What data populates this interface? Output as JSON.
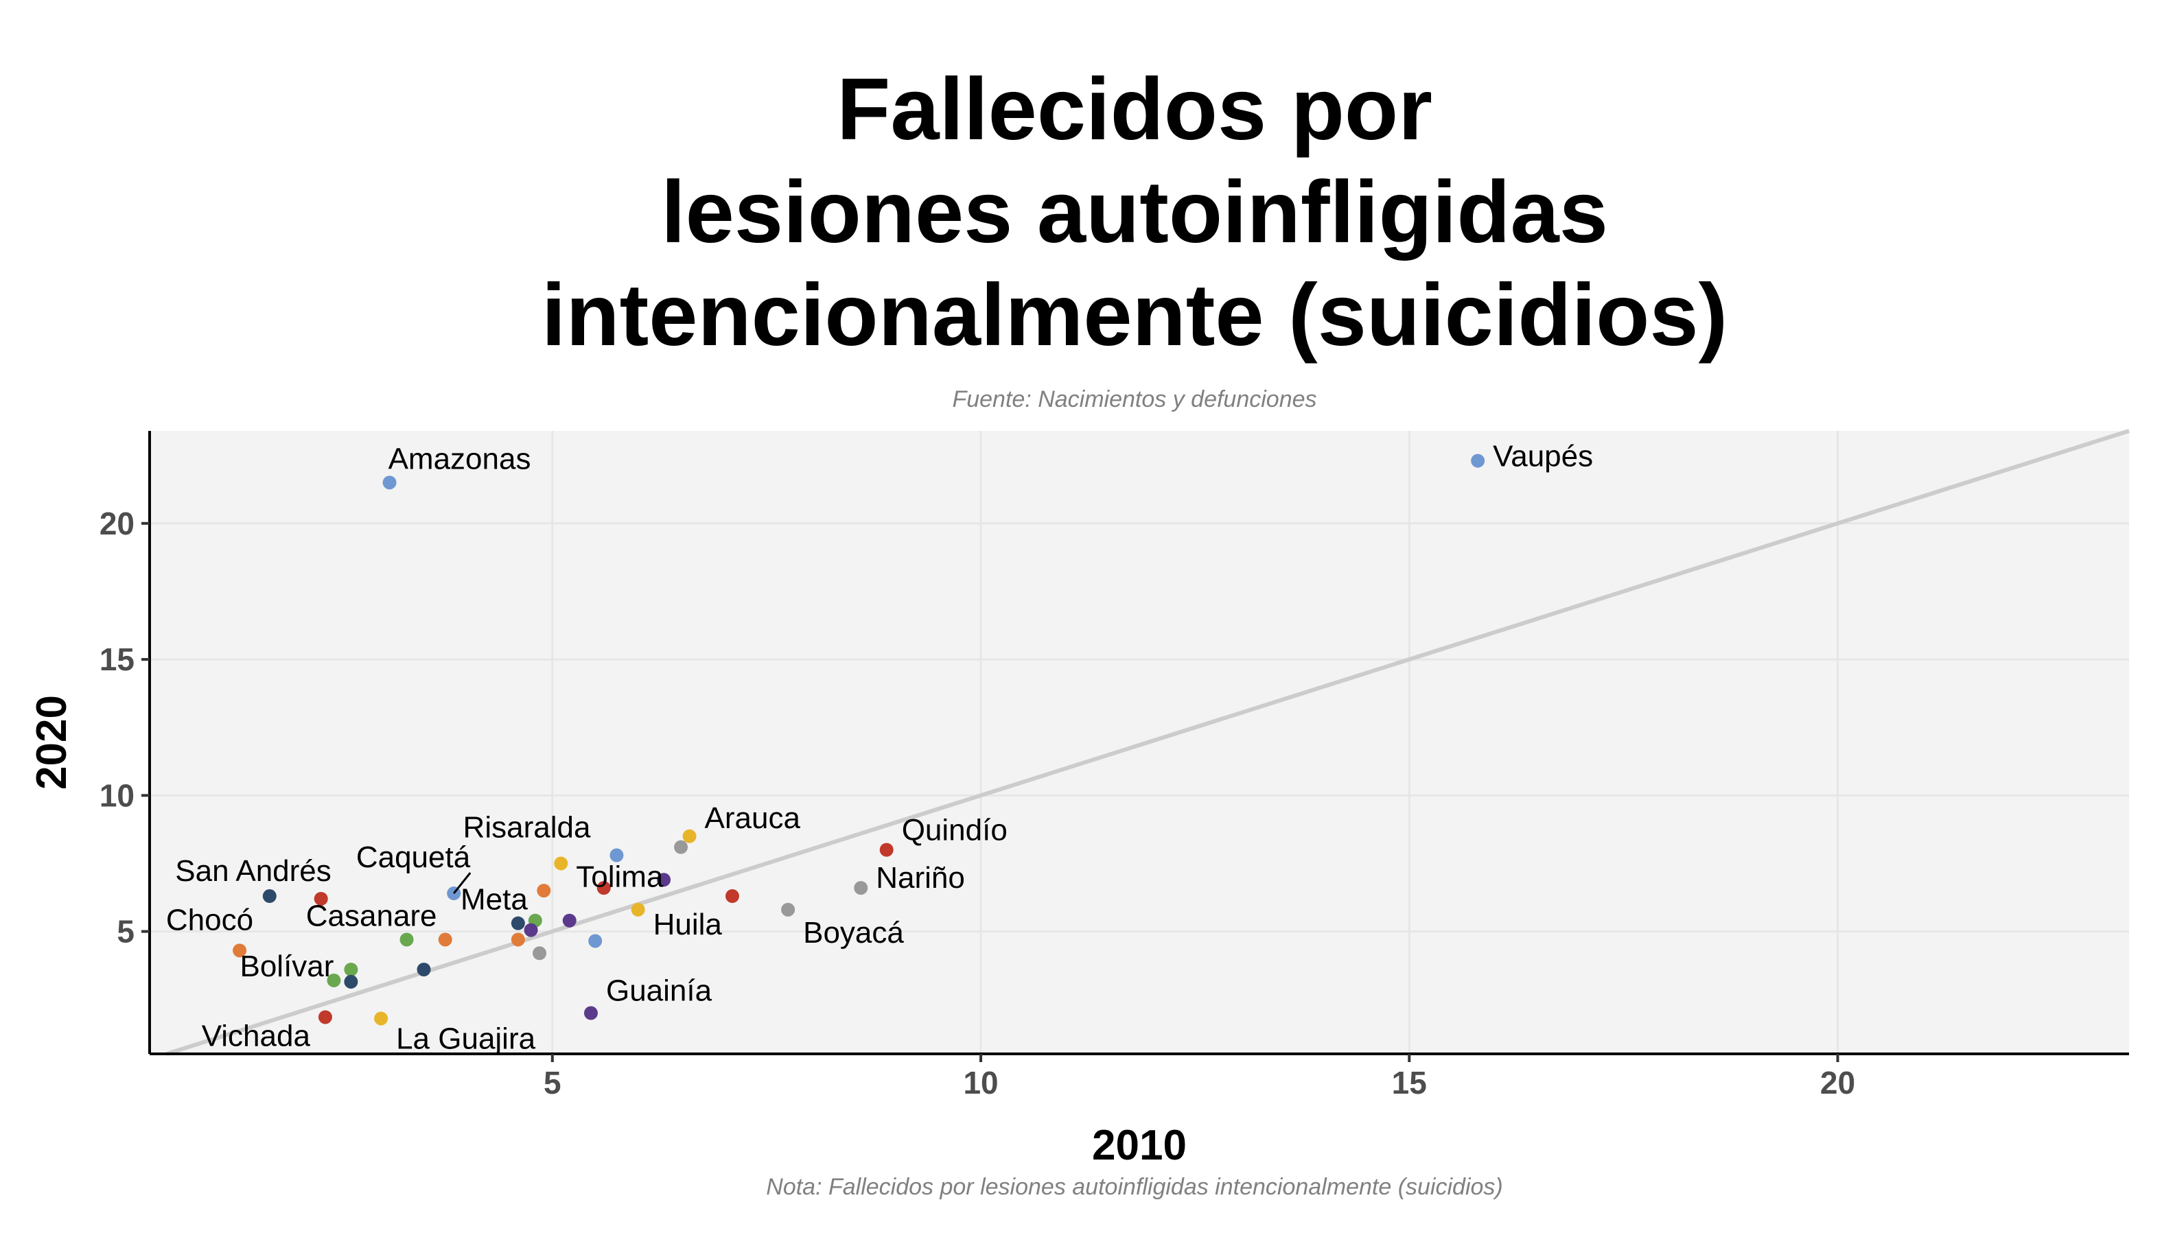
{
  "title_lines": [
    "Fallecidos por",
    "lesiones autoinfligidas",
    "intencionalmente (suicidios)"
  ],
  "source": "Fuente: Nacimientos y defunciones",
  "note": "Nota: Fallecidos por lesiones autoinfligidas intencionalmente (suicidios)",
  "colors": {
    "panel": "#f3f3f3",
    "grid": "#e6e6e6",
    "diagonal": "#cccccc",
    "axis": "#000000"
  },
  "chart_data": {
    "type": "scatter",
    "xlabel": "2010",
    "ylabel": "2020",
    "xlim": [
      0.3,
      23.4
    ],
    "ylim": [
      0.5,
      23.4
    ],
    "xticks": [
      5,
      10,
      15,
      20
    ],
    "yticks": [
      5,
      10,
      15,
      20
    ],
    "grid": true,
    "reference_line": "y = x",
    "points": [
      {
        "label": "Vaupés",
        "x": 15.8,
        "y": 22.3,
        "color": "#6f97d2"
      },
      {
        "label": "Amazonas",
        "x": 3.1,
        "y": 21.5,
        "color": "#6f97d2"
      },
      {
        "label": "Arauca",
        "x": 6.6,
        "y": 8.5,
        "color": "#e8b52a"
      },
      {
        "label": "Quindío",
        "x": 8.9,
        "y": 8.0,
        "color": "#c0392b"
      },
      {
        "label": "Risaralda",
        "x": 5.75,
        "y": 7.8,
        "color": "#6f97d2"
      },
      {
        "label": "",
        "x": 6.5,
        "y": 8.1,
        "color": "#999999"
      },
      {
        "label": "Tolima",
        "x": 5.1,
        "y": 7.5,
        "color": "#e8b52a"
      },
      {
        "label": "",
        "x": 6.3,
        "y": 6.9,
        "color": "#5b3a8c"
      },
      {
        "label": "",
        "x": 5.6,
        "y": 6.6,
        "color": "#c0392b"
      },
      {
        "label": "",
        "x": 4.9,
        "y": 6.5,
        "color": "#e07b39"
      },
      {
        "label": "Nariño",
        "x": 8.6,
        "y": 6.6,
        "color": "#999999"
      },
      {
        "label": "",
        "x": 7.1,
        "y": 6.3,
        "color": "#c0392b"
      },
      {
        "label": "Caquetá",
        "x": 3.85,
        "y": 6.4,
        "color": "#6f97d2"
      },
      {
        "label": "San Andrés",
        "x": 1.7,
        "y": 6.3,
        "color": "#2e4a6b"
      },
      {
        "label": "",
        "x": 2.3,
        "y": 6.2,
        "color": "#c0392b"
      },
      {
        "label": "Huila",
        "x": 6.0,
        "y": 5.8,
        "color": "#e8b52a"
      },
      {
        "label": "Boyacá",
        "x": 7.75,
        "y": 5.8,
        "color": "#999999"
      },
      {
        "label": "",
        "x": 4.8,
        "y": 5.4,
        "color": "#6aa84f"
      },
      {
        "label": "",
        "x": 5.2,
        "y": 5.4,
        "color": "#5b3a8c"
      },
      {
        "label": "Meta",
        "x": 4.6,
        "y": 5.3,
        "color": "#2e4a6b"
      },
      {
        "label": "",
        "x": 4.75,
        "y": 5.05,
        "color": "#5b3a8c"
      },
      {
        "label": "Casanare",
        "x": 3.3,
        "y": 4.7,
        "color": "#6aa84f"
      },
      {
        "label": "",
        "x": 3.75,
        "y": 4.7,
        "color": "#e07b39"
      },
      {
        "label": "",
        "x": 4.6,
        "y": 4.7,
        "color": "#e07b39"
      },
      {
        "label": "",
        "x": 5.5,
        "y": 4.65,
        "color": "#6f97d2"
      },
      {
        "label": "",
        "x": 4.85,
        "y": 4.2,
        "color": "#999999"
      },
      {
        "label": "Chocó",
        "x": 1.35,
        "y": 4.3,
        "color": "#e07b39"
      },
      {
        "label": "",
        "x": 2.65,
        "y": 3.6,
        "color": "#6aa84f"
      },
      {
        "label": "",
        "x": 3.5,
        "y": 3.6,
        "color": "#2e4a6b"
      },
      {
        "label": "Bolívar",
        "x": 2.45,
        "y": 3.2,
        "color": "#6aa84f"
      },
      {
        "label": "",
        "x": 2.65,
        "y": 3.15,
        "color": "#2e4a6b"
      },
      {
        "label": "Guainía",
        "x": 5.45,
        "y": 2.0,
        "color": "#5b3a8c"
      },
      {
        "label": "Vichada",
        "x": 2.35,
        "y": 1.85,
        "color": "#c0392b"
      },
      {
        "label": "La Guajira",
        "x": 3.0,
        "y": 1.8,
        "color": "#e8b52a"
      }
    ]
  }
}
